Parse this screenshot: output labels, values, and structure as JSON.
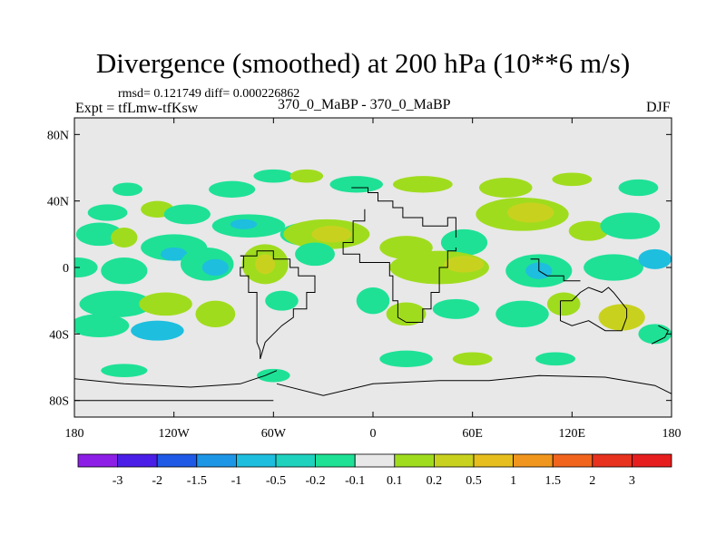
{
  "chart_data": {
    "type": "heatmap",
    "title": "Divergence (smoothed) at 200 hPa (10**6 m/s)",
    "stats_line": "rmsd= 0.121749 diff= 0.000226862",
    "left_label": "Expt = tfLmw-tfKsw",
    "center_label": "370_0_MaBP - 370_0_MaBP",
    "right_label": "DJF",
    "x_axis": {
      "range": [
        -180,
        180
      ],
      "ticks": [
        -180,
        -120,
        -60,
        0,
        60,
        120,
        180
      ],
      "tick_labels": [
        "180",
        "120W",
        "60W",
        "0",
        "60E",
        "120E",
        "180"
      ]
    },
    "y_axis": {
      "range": [
        -90,
        90
      ],
      "ticks": [
        80,
        40,
        0,
        -40,
        -80
      ],
      "tick_labels": [
        "80N",
        "40N",
        "0",
        "40S",
        "80S"
      ]
    },
    "colorbar": {
      "labels": [
        "-3",
        "-2",
        "-1.5",
        "-1",
        "-0.5",
        "-0.2",
        "-0.1",
        "0.1",
        "0.2",
        "0.5",
        "1",
        "1.5",
        "2",
        "3"
      ],
      "colors": [
        "#8c1ee6",
        "#4a1ee6",
        "#1e5ae6",
        "#1e96e6",
        "#1ebede",
        "#1ed2be",
        "#1ee196",
        "#e8e8e8",
        "#a0dc1e",
        "#c8d21e",
        "#e6be1e",
        "#f0961e",
        "#f0641e",
        "#e6321e",
        "#e61e1e"
      ]
    },
    "features": [
      {
        "lon": -148,
        "lat": 47,
        "rx": 9,
        "ry": 4,
        "color": "#1ee196"
      },
      {
        "lon": -160,
        "lat": 33,
        "rx": 12,
        "ry": 5,
        "color": "#1ee196"
      },
      {
        "lon": -130,
        "lat": 35,
        "rx": 10,
        "ry": 5,
        "color": "#a0dc1e"
      },
      {
        "lon": -112,
        "lat": 32,
        "rx": 14,
        "ry": 6,
        "color": "#1ee196"
      },
      {
        "lon": -85,
        "lat": 47,
        "rx": 14,
        "ry": 5,
        "color": "#1ee196"
      },
      {
        "lon": -60,
        "lat": 55,
        "rx": 12,
        "ry": 4,
        "color": "#1ee196"
      },
      {
        "lon": -40,
        "lat": 55,
        "rx": 10,
        "ry": 4,
        "color": "#a0dc1e"
      },
      {
        "lon": -10,
        "lat": 50,
        "rx": 16,
        "ry": 5,
        "color": "#1ee196"
      },
      {
        "lon": 30,
        "lat": 50,
        "rx": 18,
        "ry": 5,
        "color": "#a0dc1e"
      },
      {
        "lon": 80,
        "lat": 48,
        "rx": 16,
        "ry": 6,
        "color": "#a0dc1e"
      },
      {
        "lon": 120,
        "lat": 53,
        "rx": 12,
        "ry": 4,
        "color": "#a0dc1e"
      },
      {
        "lon": 160,
        "lat": 48,
        "rx": 12,
        "ry": 5,
        "color": "#1ee196"
      },
      {
        "lon": -165,
        "lat": 20,
        "rx": 14,
        "ry": 7,
        "color": "#1ee196"
      },
      {
        "lon": -150,
        "lat": 18,
        "rx": 8,
        "ry": 6,
        "color": "#a0dc1e"
      },
      {
        "lon": -120,
        "lat": 12,
        "rx": 20,
        "ry": 8,
        "color": "#1ee196"
      },
      {
        "lon": -120,
        "lat": 8,
        "rx": 8,
        "ry": 4,
        "color": "#1ebede"
      },
      {
        "lon": -75,
        "lat": 25,
        "rx": 22,
        "ry": 7,
        "color": "#1ee196"
      },
      {
        "lon": -78,
        "lat": 26,
        "rx": 8,
        "ry": 3,
        "color": "#1ebede"
      },
      {
        "lon": -40,
        "lat": 20,
        "rx": 16,
        "ry": 7,
        "color": "#1ee196"
      },
      {
        "lon": -28,
        "lat": 20,
        "rx": 26,
        "ry": 9,
        "color": "#a0dc1e"
      },
      {
        "lon": -25,
        "lat": 20,
        "rx": 12,
        "ry": 5,
        "color": "#c8d21e"
      },
      {
        "lon": 20,
        "lat": 12,
        "rx": 16,
        "ry": 7,
        "color": "#a0dc1e"
      },
      {
        "lon": 55,
        "lat": 15,
        "rx": 14,
        "ry": 8,
        "color": "#1ee196"
      },
      {
        "lon": 90,
        "lat": 32,
        "rx": 28,
        "ry": 10,
        "color": "#a0dc1e"
      },
      {
        "lon": 95,
        "lat": 33,
        "rx": 14,
        "ry": 6,
        "color": "#c8d21e"
      },
      {
        "lon": 130,
        "lat": 22,
        "rx": 12,
        "ry": 6,
        "color": "#a0dc1e"
      },
      {
        "lon": 155,
        "lat": 25,
        "rx": 18,
        "ry": 8,
        "color": "#1ee196"
      },
      {
        "lon": -178,
        "lat": 0,
        "rx": 12,
        "ry": 6,
        "color": "#1ee196"
      },
      {
        "lon": -150,
        "lat": -2,
        "rx": 14,
        "ry": 8,
        "color": "#1ee196"
      },
      {
        "lon": -100,
        "lat": 2,
        "rx": 16,
        "ry": 10,
        "color": "#1ee196"
      },
      {
        "lon": -95,
        "lat": 0,
        "rx": 8,
        "ry": 5,
        "color": "#1ebede"
      },
      {
        "lon": -65,
        "lat": 2,
        "rx": 14,
        "ry": 12,
        "color": "#a0dc1e"
      },
      {
        "lon": -65,
        "lat": 2,
        "rx": 6,
        "ry": 6,
        "color": "#c8d21e"
      },
      {
        "lon": -35,
        "lat": 8,
        "rx": 12,
        "ry": 7,
        "color": "#1ee196"
      },
      {
        "lon": 40,
        "lat": 0,
        "rx": 30,
        "ry": 10,
        "color": "#a0dc1e"
      },
      {
        "lon": 55,
        "lat": 2,
        "rx": 12,
        "ry": 5,
        "color": "#c8d21e"
      },
      {
        "lon": 100,
        "lat": -2,
        "rx": 20,
        "ry": 10,
        "color": "#1ee196"
      },
      {
        "lon": 100,
        "lat": -2,
        "rx": 8,
        "ry": 5,
        "color": "#1ebede"
      },
      {
        "lon": 145,
        "lat": 0,
        "rx": 18,
        "ry": 8,
        "color": "#1ee196"
      },
      {
        "lon": 170,
        "lat": 5,
        "rx": 10,
        "ry": 6,
        "color": "#1ebede"
      },
      {
        "lon": -155,
        "lat": -22,
        "rx": 22,
        "ry": 8,
        "color": "#1ee196"
      },
      {
        "lon": -125,
        "lat": -22,
        "rx": 16,
        "ry": 7,
        "color": "#a0dc1e"
      },
      {
        "lon": -165,
        "lat": -35,
        "rx": 18,
        "ry": 7,
        "color": "#1ee196"
      },
      {
        "lon": -130,
        "lat": -38,
        "rx": 16,
        "ry": 6,
        "color": "#1ebede"
      },
      {
        "lon": -95,
        "lat": -28,
        "rx": 12,
        "ry": 8,
        "color": "#a0dc1e"
      },
      {
        "lon": -55,
        "lat": -20,
        "rx": 10,
        "ry": 6,
        "color": "#1ee196"
      },
      {
        "lon": 0,
        "lat": -20,
        "rx": 10,
        "ry": 8,
        "color": "#1ee196"
      },
      {
        "lon": 20,
        "lat": -28,
        "rx": 12,
        "ry": 7,
        "color": "#a0dc1e"
      },
      {
        "lon": 50,
        "lat": -25,
        "rx": 14,
        "ry": 6,
        "color": "#1ee196"
      },
      {
        "lon": 90,
        "lat": -28,
        "rx": 16,
        "ry": 8,
        "color": "#1ee196"
      },
      {
        "lon": 115,
        "lat": -22,
        "rx": 10,
        "ry": 7,
        "color": "#a0dc1e"
      },
      {
        "lon": 150,
        "lat": -30,
        "rx": 14,
        "ry": 8,
        "color": "#c8d21e"
      },
      {
        "lon": 170,
        "lat": -40,
        "rx": 10,
        "ry": 6,
        "color": "#1ee196"
      },
      {
        "lon": 20,
        "lat": -55,
        "rx": 16,
        "ry": 5,
        "color": "#1ee196"
      },
      {
        "lon": 60,
        "lat": -55,
        "rx": 12,
        "ry": 4,
        "color": "#a0dc1e"
      },
      {
        "lon": 110,
        "lat": -55,
        "rx": 12,
        "ry": 4,
        "color": "#1ee196"
      },
      {
        "lon": -150,
        "lat": -62,
        "rx": 14,
        "ry": 4,
        "color": "#1ee196"
      },
      {
        "lon": -60,
        "lat": -65,
        "rx": 10,
        "ry": 4,
        "color": "#1ee196"
      }
    ],
    "coastline_segments": [
      [
        [
          -13,
          48
        ],
        [
          -3,
          48
        ],
        [
          -3,
          45
        ],
        [
          3,
          45
        ],
        [
          3,
          40
        ],
        [
          12,
          40
        ],
        [
          12,
          36
        ],
        [
          18,
          36
        ],
        [
          18,
          30
        ],
        [
          30,
          30
        ],
        [
          30,
          25
        ],
        [
          45,
          25
        ],
        [
          45,
          30
        ],
        [
          50,
          30
        ],
        [
          50,
          18
        ]
      ],
      [
        [
          -5,
          35
        ],
        [
          -5,
          28
        ],
        [
          -12,
          28
        ],
        [
          -12,
          15
        ],
        [
          -18,
          15
        ],
        [
          -18,
          8
        ],
        [
          -8,
          8
        ],
        [
          -8,
          3
        ],
        [
          10,
          3
        ],
        [
          10,
          -5
        ],
        [
          12,
          -5
        ],
        [
          12,
          -20
        ],
        [
          15,
          -20
        ],
        [
          15,
          -30
        ],
        [
          20,
          -33
        ]
      ],
      [
        [
          20,
          -33
        ],
        [
          30,
          -33
        ],
        [
          30,
          -25
        ],
        [
          35,
          -25
        ],
        [
          35,
          -15
        ],
        [
          40,
          -15
        ],
        [
          40,
          0
        ],
        [
          45,
          0
        ],
        [
          45,
          10
        ],
        [
          50,
          10
        ],
        [
          50,
          12
        ]
      ],
      [
        [
          -80,
          7
        ],
        [
          -78,
          7
        ],
        [
          -78,
          0
        ],
        [
          -80,
          0
        ],
        [
          -80,
          -5
        ],
        [
          -75,
          -5
        ],
        [
          -75,
          -15
        ],
        [
          -70,
          -15
        ],
        [
          -70,
          -45
        ],
        [
          -68,
          -50
        ],
        [
          -68,
          -55
        ]
      ],
      [
        [
          -80,
          7
        ],
        [
          -70,
          7
        ],
        [
          -70,
          10
        ],
        [
          -60,
          10
        ],
        [
          -60,
          5
        ],
        [
          -50,
          5
        ],
        [
          -50,
          0
        ],
        [
          -45,
          0
        ],
        [
          -45,
          -5
        ],
        [
          -35,
          -5
        ],
        [
          -35,
          -15
        ],
        [
          -40,
          -15
        ],
        [
          -40,
          -25
        ],
        [
          -48,
          -25
        ],
        [
          -48,
          -30
        ],
        [
          -55,
          -35
        ],
        [
          -60,
          -40
        ],
        [
          -65,
          -45
        ],
        [
          -68,
          -55
        ]
      ],
      [
        [
          95,
          5
        ],
        [
          100,
          5
        ],
        [
          100,
          -2
        ],
        [
          105,
          -5
        ],
        [
          115,
          -5
        ],
        [
          115,
          -8
        ],
        [
          125,
          -8
        ]
      ],
      [
        [
          113,
          -20
        ],
        [
          113,
          -32
        ],
        [
          120,
          -35
        ],
        [
          130,
          -32
        ],
        [
          140,
          -38
        ],
        [
          150,
          -38
        ],
        [
          153,
          -30
        ],
        [
          153,
          -25
        ],
        [
          145,
          -15
        ],
        [
          142,
          -12
        ],
        [
          138,
          -15
        ],
        [
          130,
          -12
        ],
        [
          125,
          -15
        ],
        [
          120,
          -20
        ],
        [
          113,
          -20
        ]
      ],
      [
        [
          172,
          -35
        ],
        [
          178,
          -38
        ],
        [
          176,
          -42
        ],
        [
          170,
          -45
        ],
        [
          168,
          -46
        ]
      ],
      [
        [
          -180,
          -67
        ],
        [
          -150,
          -70
        ],
        [
          -110,
          -72
        ],
        [
          -80,
          -70
        ],
        [
          -65,
          -65
        ],
        [
          -58,
          -62
        ]
      ],
      [
        [
          -58,
          -70
        ],
        [
          -30,
          -77
        ],
        [
          0,
          -70
        ],
        [
          40,
          -68
        ],
        [
          70,
          -68
        ],
        [
          100,
          -65
        ],
        [
          140,
          -66
        ],
        [
          170,
          -71
        ],
        [
          180,
          -76
        ]
      ],
      [
        [
          -180,
          -80
        ],
        [
          -140,
          -80
        ],
        [
          -100,
          -80
        ],
        [
          -60,
          -80
        ]
      ]
    ]
  }
}
